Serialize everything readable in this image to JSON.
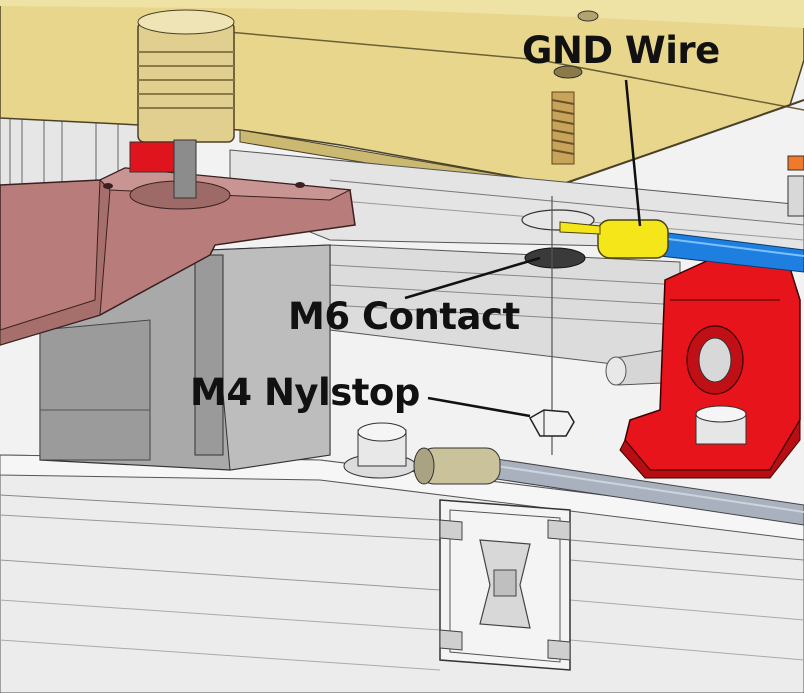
{
  "callouts": {
    "gnd_wire": "GND Wire",
    "m6_contact": "M6 Contact",
    "m4_nylstop": "M4 Nylstop"
  },
  "colors": {
    "bed_plate": "#e8d68c",
    "motor_mount": "#b87d7a",
    "stepper_body": "#a9a9a9",
    "aluminum_extrusion": "#e9e9e9",
    "pillow_block": "#e8141b",
    "ground_wire": "#1e7fe0",
    "wire_terminal": "#f5e61a",
    "threaded_rod": "#a8b1bd"
  }
}
